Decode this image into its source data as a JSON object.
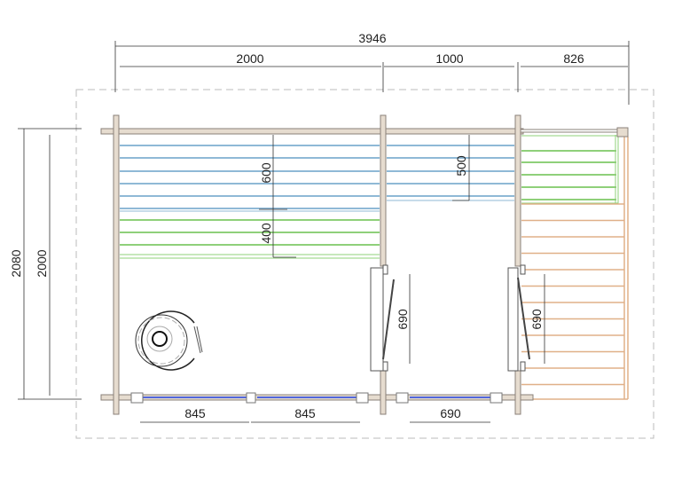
{
  "dimensions": {
    "overall_width": "3946",
    "room1_width": "2000",
    "room2_width": "1000",
    "terrace_width": "826",
    "overall_depth": "2080",
    "inner_depth": "2000",
    "upper_bench_depth": "600",
    "lower_bench_depth": "400",
    "room2_bench_depth": "500",
    "door1_width": "690",
    "door2_width": "690",
    "window1_width": "845",
    "window2_width": "845",
    "window3_width": "690"
  },
  "colors": {
    "wall": "#e6dccf",
    "wall_stroke": "#8a8078",
    "upper_bench": "#8fb9d6",
    "lower_bench": "#8fd07a",
    "deck": "#e0b088",
    "window_glass": "#2040e0",
    "outline_dashed": "#bbbbbb"
  }
}
